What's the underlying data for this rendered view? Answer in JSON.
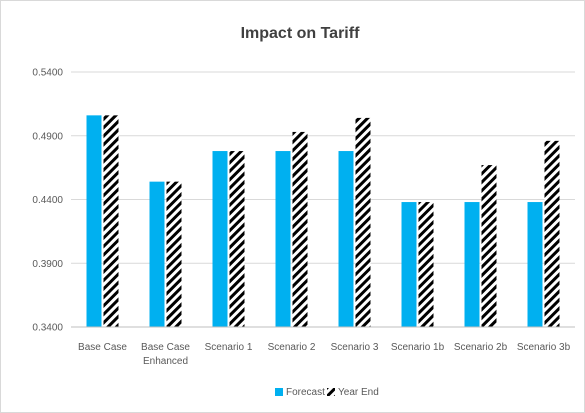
{
  "chart_data": {
    "type": "bar",
    "title": "Impact on Tariff",
    "xlabel": "",
    "ylabel": "",
    "categories": [
      [
        "Base Case"
      ],
      [
        "Base Case",
        "Enhanced"
      ],
      [
        "Scenario 1"
      ],
      [
        "Scenario 2"
      ],
      [
        "Scenario 3"
      ],
      [
        "Scenario 1b"
      ],
      [
        "Scenario 2b"
      ],
      [
        "Scenario 3b"
      ]
    ],
    "series": [
      {
        "name": "Forecast",
        "values": [
          0.506,
          0.454,
          0.478,
          0.478,
          0.478,
          0.438,
          0.438,
          0.438
        ],
        "color": "#00b0f0",
        "pattern": "solid"
      },
      {
        "name": "Year End",
        "values": [
          0.506,
          0.454,
          0.478,
          0.493,
          0.504,
          0.438,
          0.467,
          0.486
        ],
        "color": "#000000",
        "pattern": "diagonal-hatch"
      }
    ],
    "ylim": [
      0.34,
      0.54
    ],
    "yticks": [
      "0.3400",
      "0.3900",
      "0.4400",
      "0.4900",
      "0.5400"
    ],
    "grid": true,
    "legend_position": "bottom"
  }
}
